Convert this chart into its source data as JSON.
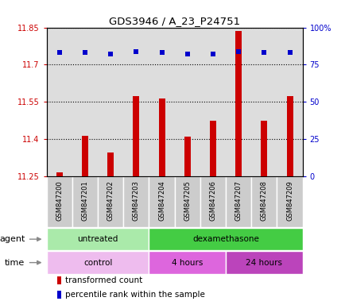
{
  "title": "GDS3946 / A_23_P24751",
  "samples": [
    "GSM847200",
    "GSM847201",
    "GSM847202",
    "GSM847203",
    "GSM847204",
    "GSM847205",
    "GSM847206",
    "GSM847207",
    "GSM847208",
    "GSM847209"
  ],
  "bar_values": [
    11.265,
    11.415,
    11.345,
    11.575,
    11.565,
    11.41,
    11.475,
    11.835,
    11.475,
    11.575
  ],
  "percentile_values": [
    83,
    83,
    82,
    84,
    83,
    82,
    82,
    84,
    83,
    83
  ],
  "ylim_left": [
    11.25,
    11.85
  ],
  "ylim_right": [
    0,
    100
  ],
  "yticks_left": [
    11.25,
    11.4,
    11.55,
    11.7,
    11.85
  ],
  "yticks_right": [
    0,
    25,
    50,
    75,
    100
  ],
  "ytick_labels_right": [
    "0",
    "25",
    "50",
    "75",
    "100%"
  ],
  "bar_color": "#cc0000",
  "dot_color": "#0000cc",
  "bar_bottom": 11.25,
  "bar_width": 0.25,
  "agent_groups": [
    {
      "label": "untreated",
      "start": 0,
      "end": 4,
      "color": "#aaeaaa"
    },
    {
      "label": "dexamethasone",
      "start": 4,
      "end": 10,
      "color": "#44cc44"
    }
  ],
  "time_groups": [
    {
      "label": "control",
      "start": 0,
      "end": 4,
      "color": "#eebcee"
    },
    {
      "label": "4 hours",
      "start": 4,
      "end": 7,
      "color": "#dd66dd"
    },
    {
      "label": "24 hours",
      "start": 7,
      "end": 10,
      "color": "#bb44bb"
    }
  ],
  "legend_items": [
    {
      "label": "transformed count",
      "color": "#cc0000"
    },
    {
      "label": "percentile rank within the sample",
      "color": "#0000cc"
    }
  ],
  "plot_bg_color": "#dddddd",
  "sample_box_color": "#cccccc",
  "grid_color": "#000000"
}
